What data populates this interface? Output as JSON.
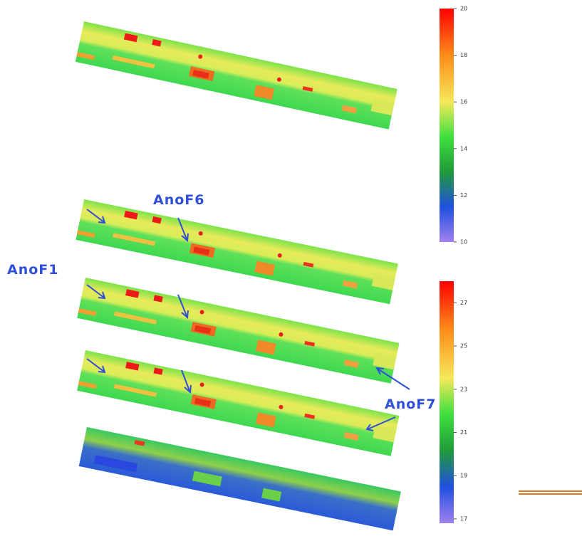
{
  "annotations": [
    "AnoF6",
    "AnoF1",
    "AnoF7"
  ],
  "colorbars": [
    {
      "lim": [
        10,
        20
      ],
      "ticks": [
        20,
        18,
        16,
        14,
        12,
        10
      ]
    },
    {
      "lim": [
        16.8,
        28
      ],
      "ticks": [
        27,
        25,
        23,
        21,
        19,
        17
      ]
    }
  ]
}
